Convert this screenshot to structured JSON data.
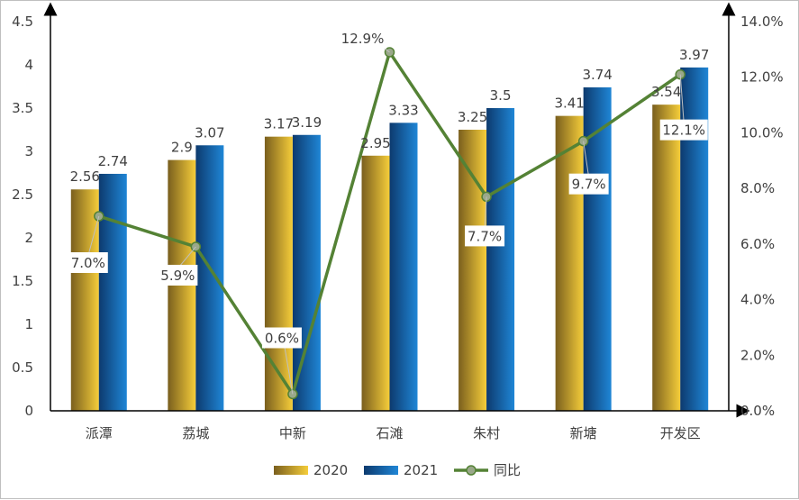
{
  "chart_data": {
    "type": "bar",
    "categories": [
      "派潭",
      "荔城",
      "中新",
      "石滩",
      "朱村",
      "新塘",
      "开发区"
    ],
    "series": [
      {
        "name": "2020",
        "type": "bar",
        "axis": "left",
        "values": [
          2.56,
          2.9,
          3.17,
          2.95,
          3.25,
          3.41,
          3.54
        ],
        "labels": [
          "2.56",
          "2.9",
          "3.17",
          "2.95",
          "3.25",
          "3.41",
          "3.54"
        ],
        "color_light": "#f5cd3a",
        "color_dark": "#7a5f1e"
      },
      {
        "name": "2021",
        "type": "bar",
        "axis": "left",
        "values": [
          2.74,
          3.07,
          3.19,
          3.33,
          3.5,
          3.74,
          3.97
        ],
        "labels": [
          "2.74",
          "3.07",
          "3.19",
          "3.33",
          "3.5",
          "3.74",
          "3.97"
        ],
        "color_light": "#1f86d6",
        "color_dark": "#0d3a6e"
      },
      {
        "name": "同比",
        "type": "line",
        "axis": "right",
        "values": [
          7.0,
          5.9,
          0.6,
          12.9,
          7.7,
          9.7,
          12.1
        ],
        "labels": [
          "7.0%",
          "5.9%",
          "0.6%",
          "12.9%",
          "7.7%",
          "9.7%",
          "12.1%"
        ],
        "color": "#548235"
      }
    ],
    "y_left": {
      "lim": [
        0,
        4.5
      ],
      "ticks": [
        "0",
        "0.5",
        "1",
        "1.5",
        "2",
        "2.5",
        "3",
        "3.5",
        "4",
        "4.5"
      ]
    },
    "y_right": {
      "lim": [
        0,
        14
      ],
      "ticks": [
        "0.0%",
        "2.0%",
        "4.0%",
        "6.0%",
        "8.0%",
        "10.0%",
        "12.0%",
        "14.0%"
      ]
    },
    "legend": {
      "position": "bottom",
      "items": [
        "2020",
        "2021",
        "同比"
      ]
    },
    "grid": false,
    "title": "",
    "xlabel": "",
    "ylabel": ""
  }
}
